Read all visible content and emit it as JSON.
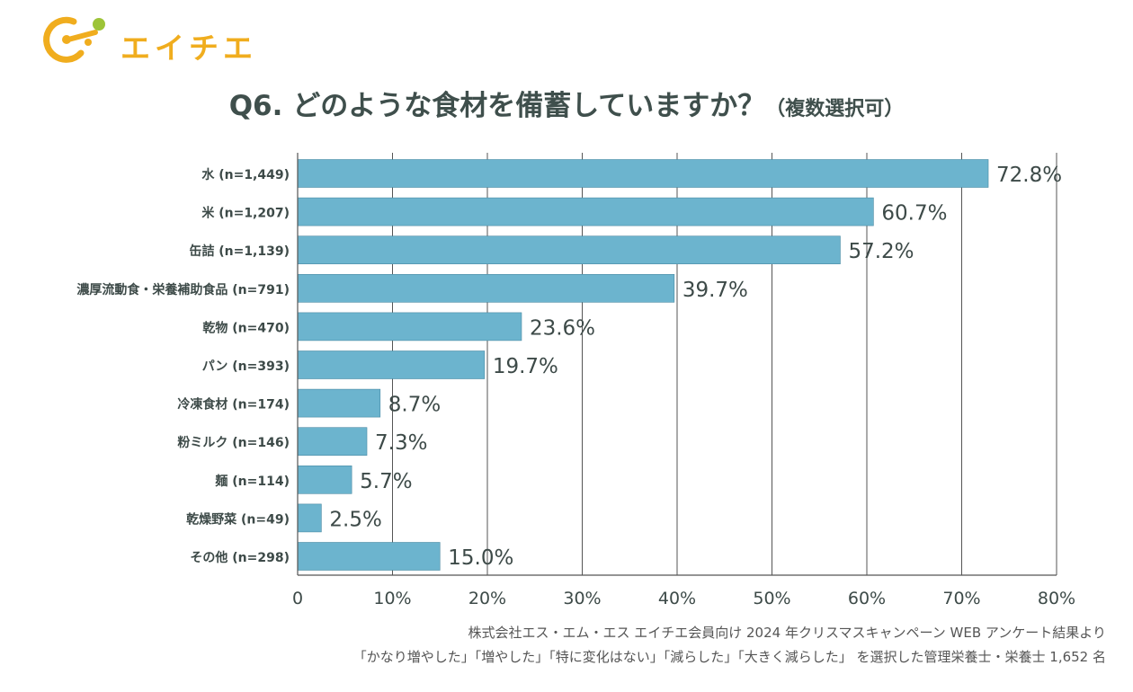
{
  "brand": {
    "name": "エイチエ",
    "color": "#f0ad1e"
  },
  "title": {
    "main": "Q6. どのような食材を備蓄していますか？",
    "sub": "（複数選択可）"
  },
  "chart_data": {
    "type": "bar",
    "orientation": "horizontal",
    "categories": [
      "水 (n=1,449)",
      "米 (n=1,207)",
      "缶詰 (n=1,139)",
      "濃厚流動食・栄養補助食品 (n=791)",
      "乾物 (n=470)",
      "パン (n=393)",
      "冷凍食材 (n=174)",
      "粉ミルク (n=146)",
      "麺 (n=114)",
      "乾燥野菜 (n=49)",
      "その他 (n=298)"
    ],
    "values": [
      72.8,
      60.7,
      57.2,
      39.7,
      23.6,
      19.7,
      8.7,
      7.3,
      5.7,
      2.5,
      15.0
    ],
    "value_labels": [
      "72.8%",
      "60.7%",
      "57.2%",
      "39.7%",
      "23.6%",
      "19.7%",
      "8.7%",
      "7.3%",
      "5.7%",
      "2.5%",
      "15.0%"
    ],
    "xlim": [
      0,
      80
    ],
    "ticks": [
      0,
      10,
      20,
      30,
      40,
      50,
      60,
      70,
      80
    ],
    "tick_labels": [
      "0",
      "10%",
      "20%",
      "30%",
      "40%",
      "50%",
      "60%",
      "70%",
      "80%"
    ],
    "grid": true,
    "bar_color": "#6cb4ce"
  },
  "footnote": {
    "line1": "株式会社エス・エム・エス エイチエ会員向け 2024 年クリスマスキャンペーン WEB アンケート結果より",
    "line2": "「かなり増やした」「増やした」「特に変化はない」「減らした」「大きく減らした」 を選択した管理栄養士・栄養士 1,652 名"
  }
}
